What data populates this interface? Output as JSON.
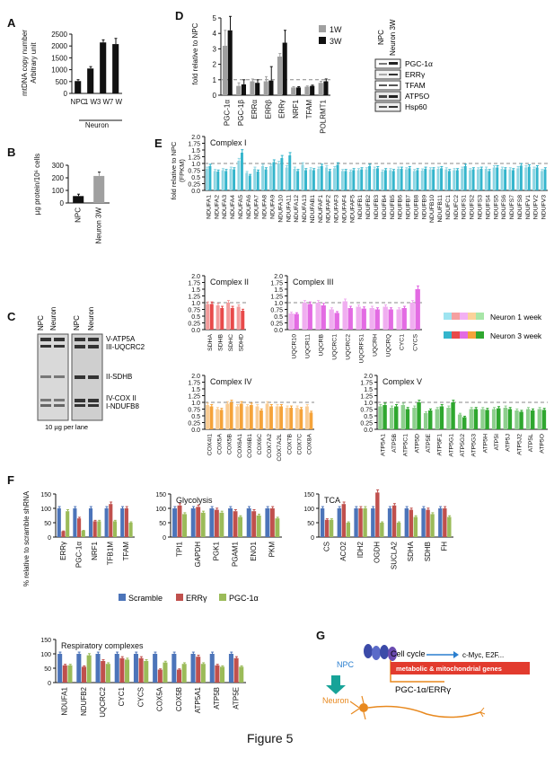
{
  "figure_caption": "Figure 5",
  "panel_labels": [
    "A",
    "B",
    "C",
    "D",
    "E",
    "F",
    "G"
  ],
  "colors": {
    "black": "#111111",
    "gray": "#a0a0a0",
    "blue": "#34b5cc",
    "red": "#e84a4a",
    "magenta": "#e36be3",
    "orange": "#f5a33a",
    "green": "#2fa72f",
    "scramble": "#4c74b9",
    "erry": "#c0504d",
    "pgc": "#9bbb59",
    "dash": "#888888"
  },
  "chart_data": [
    {
      "id": "A",
      "type": "bar",
      "ylabel": "mtDNA copy number\nArbitrary unit",
      "categories": [
        "NPC",
        "1 W",
        "3 W",
        "7 W"
      ],
      "group_label": "Neuron",
      "values": [
        520,
        1050,
        2150,
        2080
      ],
      "errors": [
        60,
        80,
        110,
        240
      ],
      "ylim": [
        0,
        2500
      ],
      "yticks": [
        0,
        500,
        1000,
        1500,
        2000,
        2500
      ]
    },
    {
      "id": "B",
      "type": "bar",
      "ylabel": "µg protein/10⁶ cells",
      "categories": [
        "NPC",
        "Neuron 3W"
      ],
      "values": [
        55,
        215
      ],
      "errors": [
        15,
        30
      ],
      "ylim": [
        0,
        300
      ],
      "yticks": [
        0,
        100,
        200,
        300
      ]
    },
    {
      "id": "D",
      "type": "bar",
      "ylabel": "fold relative to NPC",
      "categories": [
        "PGC-1α",
        "PGC-1β",
        "ERRα",
        "ERRβ",
        "ERRγ",
        "NRF1",
        "TFAM",
        "POLRMT1"
      ],
      "series": [
        {
          "name": "1W",
          "values": [
            3.2,
            0.6,
            0.9,
            0.9,
            2.5,
            0.5,
            0.55,
            0.8
          ],
          "errors": [
            1.0,
            0.2,
            0.15,
            0.3,
            0.2,
            0.05,
            0.05,
            0.1
          ]
        },
        {
          "name": "3W",
          "values": [
            4.2,
            0.7,
            0.8,
            0.95,
            3.4,
            0.5,
            0.6,
            0.9
          ],
          "errors": [
            0.9,
            0.3,
            0.2,
            0.9,
            0.8,
            0.05,
            0.05,
            0.15
          ]
        }
      ],
      "ylim": [
        0,
        5
      ],
      "yticks": [
        0,
        1,
        2,
        3,
        4,
        5
      ]
    },
    {
      "id": "E-I",
      "type": "bar",
      "title": "Complex I",
      "ylabel": "fold relative to NPC\n(FPKM)",
      "categories": [
        "NDUFA1",
        "NDUFA2",
        "NDUFA3",
        "NDUFA4",
        "NDUFA5",
        "NDUFA6",
        "NDUFA7",
        "NDUFA8",
        "NDUFA9",
        "NDUFA10",
        "NDUFA11",
        "NDUFA12",
        "NDUFA13",
        "NDUFAB1",
        "NDUFAF1",
        "NDUFAF2",
        "NDUFAF3",
        "NDUFAF4",
        "NDUFAF5",
        "NDUFB1",
        "NDUFB2",
        "NDUFB3",
        "NDUFB4",
        "NDUFB5",
        "NDUFB6",
        "NDUFB7",
        "NDUFB8",
        "NDUFB9",
        "NDUFB10",
        "NDUFB11",
        "NDUFC1",
        "NDUFC2",
        "NDUFS1",
        "NDUFS2",
        "NDUFS3",
        "NDUFS4",
        "NDUFS5",
        "NDUFS6",
        "NDUFS7",
        "NDUFS8",
        "NDUFV1",
        "NDUFV2",
        "NDUFV3"
      ],
      "series": [
        {
          "name": "Neuron 1 week",
          "values": [
            0.8,
            0.72,
            0.75,
            0.8,
            1.1,
            0.65,
            0.8,
            0.9,
            0.9,
            1.0,
            0.85,
            0.8,
            0.95,
            0.78,
            0.8,
            0.85,
            0.82,
            0.72,
            0.7,
            0.75,
            0.78,
            0.8,
            0.7,
            0.75,
            0.8,
            0.78,
            0.72,
            0.74,
            0.78,
            0.8,
            0.78,
            0.75,
            0.8,
            0.75,
            0.78,
            0.8,
            0.85,
            0.8,
            0.78,
            0.82,
            0.85,
            0.8,
            0.72
          ]
        },
        {
          "name": "Neuron 3 week",
          "values": [
            0.9,
            0.7,
            0.72,
            0.78,
            1.4,
            0.55,
            0.7,
            0.78,
            1.05,
            1.2,
            1.3,
            0.72,
            0.75,
            0.75,
            0.9,
            0.72,
            0.95,
            0.72,
            0.75,
            0.78,
            0.9,
            0.82,
            0.75,
            0.72,
            0.8,
            0.82,
            0.75,
            0.8,
            0.78,
            0.82,
            0.72,
            0.75,
            0.9,
            0.78,
            0.8,
            0.72,
            0.85,
            0.78,
            0.75,
            0.92,
            0.88,
            0.85,
            0.78
          ]
        }
      ],
      "ylim": [
        0,
        2.0
      ],
      "yticks": [
        0,
        0.25,
        0.5,
        0.75,
        1.0,
        1.25,
        1.5,
        1.75,
        2.0
      ]
    },
    {
      "id": "E-II",
      "type": "bar",
      "title": "Complex II",
      "categories": [
        "SDHA",
        "SDHB",
        "SDHC",
        "SDHD"
      ],
      "series": [
        {
          "name": "Neuron 1 week",
          "values": [
            0.95,
            0.9,
            1.0,
            0.85
          ]
        },
        {
          "name": "Neuron 3 week",
          "values": [
            0.95,
            0.8,
            0.8,
            0.7
          ]
        }
      ],
      "ylim": [
        0,
        2.0
      ],
      "yticks": [
        0,
        0.25,
        0.5,
        0.75,
        1.0,
        1.25,
        1.5,
        1.75,
        2.0
      ]
    },
    {
      "id": "E-III",
      "type": "bar",
      "title": "Complex III",
      "categories": [
        "UQCR10",
        "UQCR11",
        "UQCRB",
        "UQCRC1",
        "UQCRC2",
        "UQCRFS1",
        "UQCRH",
        "UQCRQ",
        "CYC1",
        "CYCS"
      ],
      "series": [
        {
          "name": "Neuron 1 week",
          "values": [
            0.6,
            1.0,
            1.0,
            0.75,
            1.05,
            0.85,
            0.8,
            0.85,
            0.75,
            1.0
          ]
        },
        {
          "name": "Neuron 3 week",
          "values": [
            0.58,
            0.95,
            0.9,
            0.62,
            0.8,
            0.78,
            0.75,
            0.75,
            0.8,
            1.5
          ]
        }
      ],
      "ylim": [
        0,
        2.0
      ],
      "yticks": [
        0,
        0.25,
        0.5,
        0.75,
        1.0,
        1.25,
        1.5,
        1.75,
        2.0
      ]
    },
    {
      "id": "E-IV",
      "type": "bar",
      "title": "Complex IV",
      "categories": [
        "COX4I1",
        "COX5A",
        "COX5B",
        "COX6A1",
        "COX6B1",
        "COX6C",
        "COX7A2",
        "COX7A2L",
        "COX7B",
        "COX7C",
        "COX8A"
      ],
      "series": [
        {
          "name": "Neuron 1 week",
          "values": [
            0.9,
            0.75,
            0.95,
            0.85,
            0.85,
            0.85,
            0.95,
            0.85,
            0.8,
            0.8,
            0.85
          ]
        },
        {
          "name": "Neuron 3 week",
          "values": [
            0.85,
            0.72,
            1.0,
            0.95,
            0.9,
            0.7,
            0.85,
            0.85,
            0.8,
            0.75,
            0.62
          ]
        }
      ],
      "ylim": [
        0,
        2.0
      ],
      "yticks": [
        0,
        0.25,
        0.5,
        0.75,
        1.0,
        1.25,
        1.5,
        1.75,
        2.0
      ]
    },
    {
      "id": "E-V",
      "type": "bar",
      "title": "Complex V",
      "categories": [
        "ATP5A1",
        "ATP5B",
        "ATP5C1",
        "ATP5D",
        "ATP5E",
        "ATP5F1",
        "ATP5G1",
        "ATP5G2",
        "ATP5G3",
        "ATP5H",
        "ATP5I",
        "ATP5J",
        "ATP5J2",
        "ATP5L",
        "ATP5O"
      ],
      "series": [
        {
          "name": "Neuron 1 week",
          "values": [
            0.85,
            0.8,
            0.9,
            0.8,
            0.6,
            0.75,
            0.8,
            0.55,
            0.75,
            0.75,
            0.75,
            0.8,
            0.7,
            0.75,
            0.75
          ]
        },
        {
          "name": "Neuron 3 week",
          "values": [
            0.9,
            0.85,
            0.75,
            1.0,
            0.7,
            0.85,
            1.0,
            0.45,
            0.75,
            0.72,
            0.78,
            0.75,
            0.65,
            0.7,
            0.72
          ]
        }
      ],
      "ylim": [
        0,
        2.0
      ],
      "yticks": [
        0,
        0.25,
        0.5,
        0.75,
        1.0,
        1.25,
        1.5,
        1.75,
        2.0
      ]
    },
    {
      "id": "F1",
      "type": "bar",
      "title": "",
      "ylabel": "% relative to scramble shRNA",
      "categories": [
        "ERRγ",
        "PGC-1α",
        "NRF1",
        "TFB1M",
        "TFAM"
      ],
      "series": [
        {
          "name": "Scramble",
          "values": [
            100,
            100,
            100,
            100,
            100
          ]
        },
        {
          "name": "ERRγ",
          "values": [
            20,
            65,
            55,
            115,
            100
          ]
        },
        {
          "name": "PGC-1α",
          "values": [
            90,
            22,
            55,
            55,
            50
          ]
        }
      ],
      "ylim": [
        0,
        150
      ],
      "yticks": [
        0,
        50,
        100,
        150
      ]
    },
    {
      "id": "F2",
      "type": "bar",
      "title": "Glycolysis",
      "categories": [
        "TPI1",
        "GAPDH",
        "PGK1",
        "PGAM1",
        "ENO1",
        "PKM"
      ],
      "series": [
        {
          "name": "Scramble",
          "values": [
            100,
            100,
            100,
            100,
            100,
            100
          ]
        },
        {
          "name": "ERRγ",
          "values": [
            110,
            105,
            95,
            90,
            90,
            100
          ]
        },
        {
          "name": "PGC-1α",
          "values": [
            80,
            85,
            85,
            70,
            75,
            65
          ]
        }
      ],
      "ylim": [
        0,
        150
      ],
      "yticks": [
        0,
        50,
        100,
        150
      ]
    },
    {
      "id": "F3",
      "type": "bar",
      "title": "TCA",
      "categories": [
        "CS",
        "ACO2",
        "IDH2",
        "OGDH",
        "SUCLA2",
        "SDHA",
        "SDHB",
        "FH"
      ],
      "series": [
        {
          "name": "Scramble",
          "values": [
            100,
            100,
            100,
            100,
            100,
            100,
            100,
            100
          ]
        },
        {
          "name": "ERRγ",
          "values": [
            60,
            115,
            100,
            155,
            110,
            95,
            95,
            100
          ]
        },
        {
          "name": "PGC-1α",
          "values": [
            60,
            50,
            100,
            50,
            50,
            70,
            80,
            70
          ]
        }
      ],
      "ylim": [
        0,
        150
      ],
      "yticks": [
        0,
        50,
        100,
        150
      ]
    },
    {
      "id": "F4",
      "type": "bar",
      "title": "Respiratory complexes",
      "categories": [
        "NDUFA1",
        "NDUFB2",
        "UQCRC2",
        "CYC1",
        "CYCS",
        "COX5A",
        "COX5B",
        "ATP5A1",
        "ATP5B",
        "ATP5E"
      ],
      "series": [
        {
          "name": "Scramble",
          "values": [
            100,
            100,
            100,
            100,
            100,
            100,
            100,
            100,
            100,
            100
          ]
        },
        {
          "name": "ERRγ",
          "values": [
            60,
            55,
            75,
            85,
            85,
            45,
            45,
            90,
            60,
            85
          ]
        },
        {
          "name": "PGC-1α",
          "values": [
            60,
            95,
            65,
            80,
            75,
            70,
            65,
            65,
            55,
            55
          ]
        }
      ],
      "ylim": [
        0,
        150
      ],
      "yticks": [
        0,
        50,
        100,
        150
      ]
    }
  ],
  "panelC": {
    "lanes_left": [
      "NPC",
      "Neuron 1W"
    ],
    "lanes_right": [
      "NPC",
      "Neuron 3W"
    ],
    "bands": [
      "V-ATP5A",
      "III-UQCRC2",
      "II-SDHB",
      "IV-COX II",
      "I-NDUFB8"
    ],
    "footer": "10 µg per lane"
  },
  "panelD_blot": {
    "lanes": [
      "NPC",
      "Neuron 3W"
    ],
    "bands": [
      "PGC-1α",
      "ERRγ",
      "TFAM",
      "ATP5O",
      "Hsp60"
    ]
  },
  "panelE_legend": [
    "Neuron 1 week",
    "Neuron 3 week"
  ],
  "panelF_legend": [
    "Scramble",
    "ERRγ",
    "PGC-1α"
  ],
  "panelG": {
    "npc": "NPC",
    "neuron": "Neuron",
    "cell_cycle": "Cell cycle",
    "cmyc": "c-Myc, E2F...",
    "genes_box": "metabolic & mitochondrial genes",
    "pathway": "PGC-1α/ERRγ"
  }
}
